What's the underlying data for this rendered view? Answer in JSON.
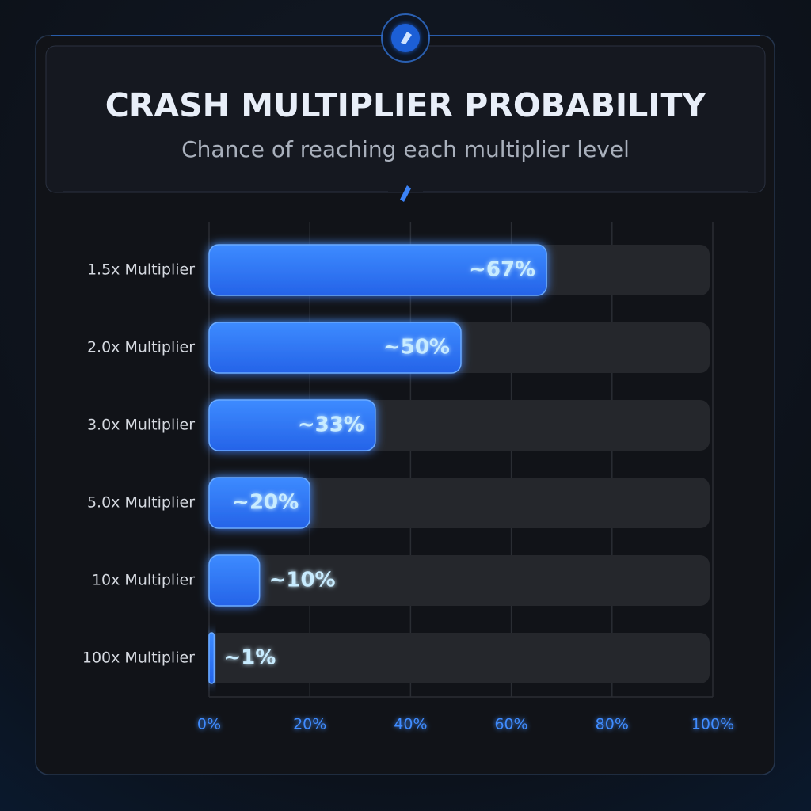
{
  "chart_data": {
    "type": "hbar",
    "title": "CRASH MULTIPLIER PROBABILITY",
    "subtitle": "Chance of reaching each multiplier level",
    "categories": [
      "1.5x Multiplier",
      "2.0x Multiplier",
      "3.0x Multiplier",
      "5.0x Multiplier",
      "10x Multiplier",
      "100x Multiplier"
    ],
    "values": [
      67,
      50,
      33,
      20,
      10,
      1
    ],
    "value_labels": [
      "~67%",
      "~50%",
      "~33%",
      "~20%",
      "~10%",
      "~1%"
    ],
    "color": "#2f7bff",
    "xlim": [
      0,
      100
    ],
    "xticks": [
      {
        "value": 0,
        "label": "0%"
      },
      {
        "value": 20,
        "label": "20%"
      },
      {
        "value": 40,
        "label": "40%"
      },
      {
        "value": 60,
        "label": "60%"
      },
      {
        "value": 80,
        "label": "80%"
      },
      {
        "value": 100,
        "label": "100%"
      }
    ],
    "grid": true
  }
}
